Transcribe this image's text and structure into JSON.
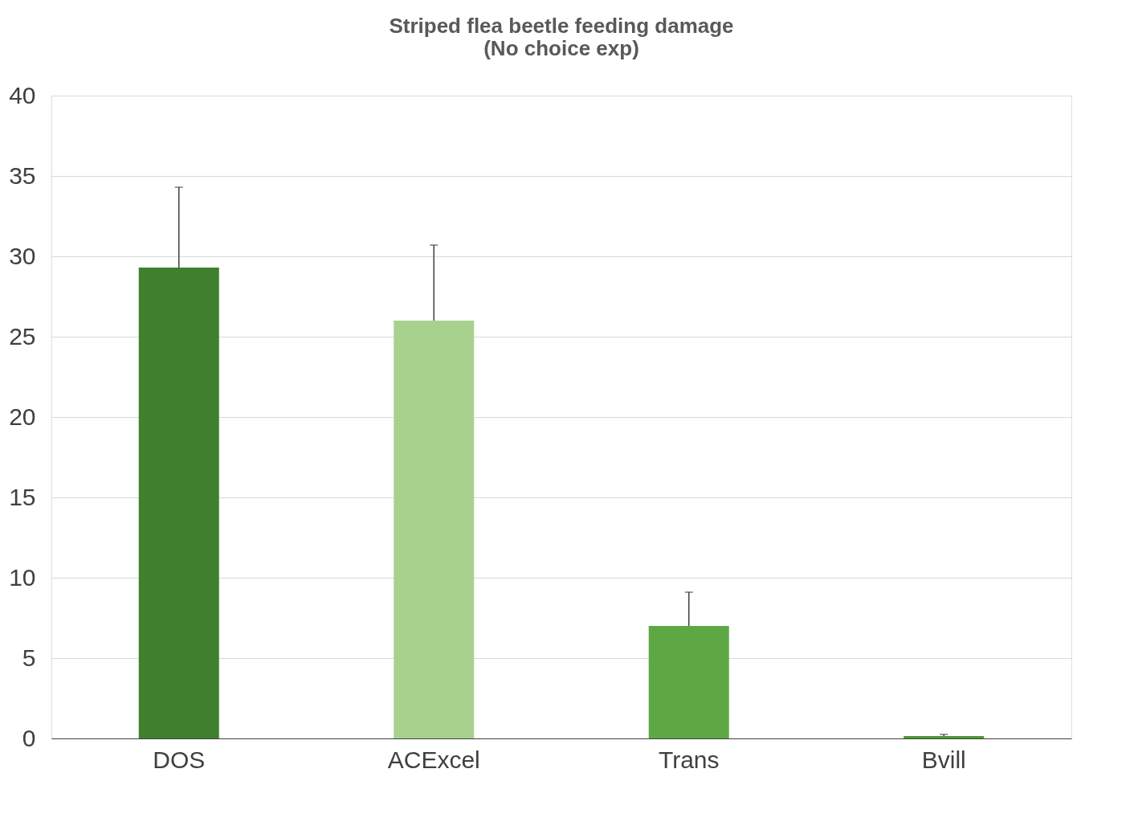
{
  "chart_data": {
    "type": "bar",
    "title": [
      "Striped flea beetle feeding damage",
      "(No choice exp)"
    ],
    "categories": [
      "DOS",
      "ACExcel",
      "Trans",
      "Bvill"
    ],
    "values": [
      29.3,
      26.0,
      7.0,
      0.15
    ],
    "colors": [
      "#3f7f2e",
      "#a9d18e",
      "#5da845",
      "#4e9a35"
    ],
    "errors": [
      [
        29.3,
        34.3
      ],
      [
        26.0,
        30.7
      ],
      [
        7.0,
        9.1
      ],
      [
        0.15,
        0.25
      ]
    ],
    "ylim": [
      0,
      40
    ],
    "yticks": [
      0,
      5,
      10,
      15,
      20,
      25,
      30,
      35,
      40
    ],
    "grid": "y"
  }
}
